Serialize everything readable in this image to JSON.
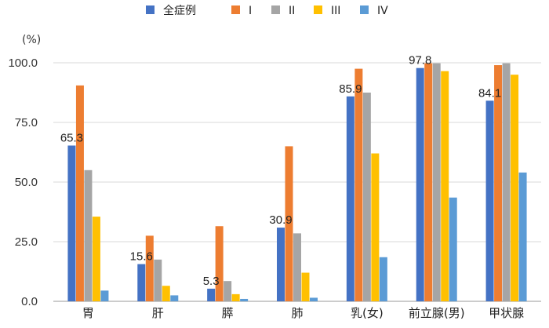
{
  "chart_data": {
    "type": "bar",
    "unit_label": "(%)",
    "categories": [
      "胃",
      "肝",
      "膵",
      "肺",
      "乳(女)",
      "前立腺(男)",
      "甲状腺"
    ],
    "ylim": [
      0,
      100
    ],
    "yticks": [
      "0.0",
      "25.0",
      "50.0",
      "75.0",
      "100.0"
    ],
    "grid": true,
    "legend": "top",
    "series": [
      {
        "name": "全症例",
        "color": "#4472c4",
        "values": [
          65.3,
          15.6,
          5.3,
          30.9,
          85.9,
          97.8,
          84.1
        ],
        "labels": [
          "65.3",
          "15.6",
          "5.3",
          "30.9",
          "85.9",
          "97.8",
          "84.1"
        ]
      },
      {
        "name": "I",
        "color": "#ed7d31",
        "values": [
          90.5,
          27.5,
          31.5,
          65.0,
          97.5,
          99.8,
          99.0
        ]
      },
      {
        "name": "II",
        "color": "#a5a5a5",
        "values": [
          55.0,
          17.5,
          8.5,
          28.5,
          87.5,
          99.8,
          99.8
        ]
      },
      {
        "name": "III",
        "color": "#ffc000",
        "values": [
          35.5,
          6.5,
          3.0,
          12.0,
          62.0,
          96.5,
          95.0
        ]
      },
      {
        "name": "IV",
        "color": "#5b9bd5",
        "values": [
          4.5,
          2.5,
          1.0,
          1.5,
          18.5,
          43.5,
          54.0
        ]
      }
    ]
  }
}
